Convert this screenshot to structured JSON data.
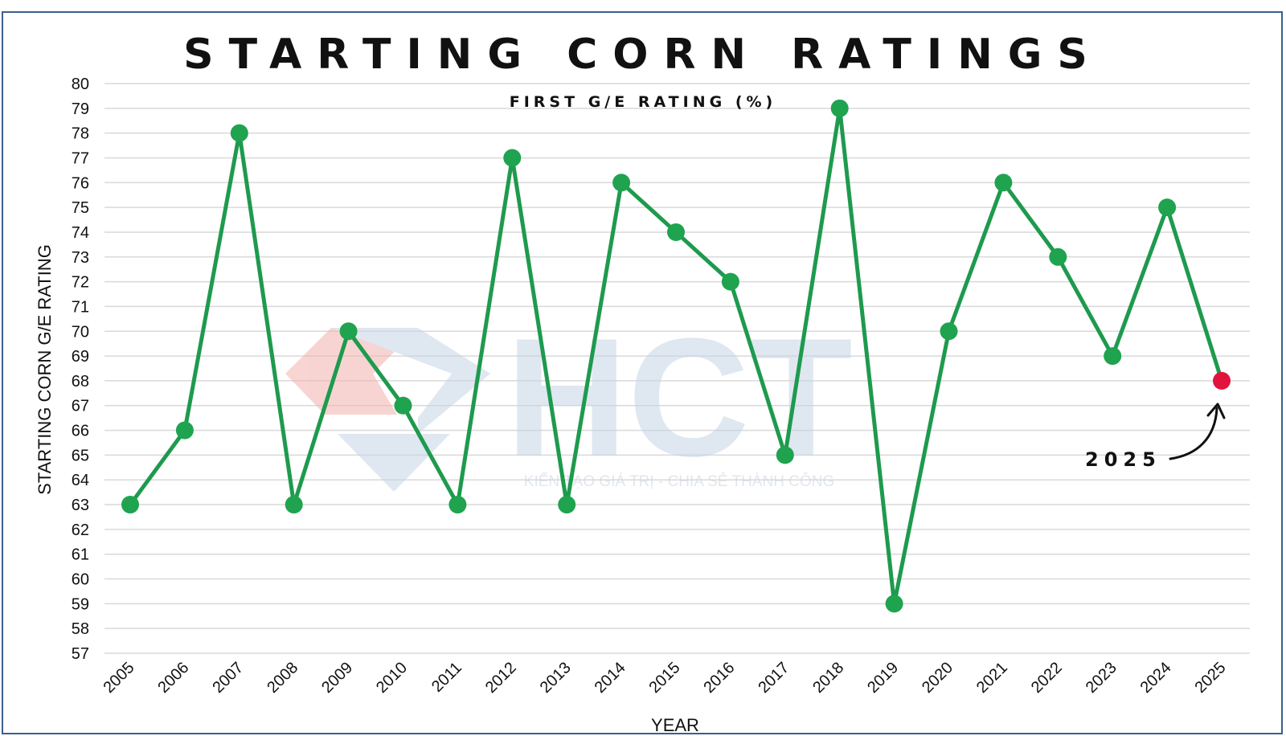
{
  "chart_data": {
    "type": "line",
    "title": "STARTING CORN RATINGS",
    "subtitle": "FIRST G/E RATING (%)",
    "xlabel": "YEAR",
    "ylabel": "STARTING CORN G/E RATING",
    "ylim": [
      57,
      80
    ],
    "ytick_step": 1,
    "grid": true,
    "legend": "none",
    "categories": [
      "2005",
      "2006",
      "2007",
      "2008",
      "2009",
      "2010",
      "2011",
      "2012",
      "2013",
      "2014",
      "2015",
      "2016",
      "2017",
      "2018",
      "2019",
      "2020",
      "2021",
      "2022",
      "2023",
      "2024",
      "2025"
    ],
    "series": [
      {
        "values": [
          63,
          66,
          78,
          63,
          70,
          67,
          63,
          77,
          63,
          76,
          74,
          72,
          65,
          79,
          59,
          70,
          76,
          73,
          69,
          75,
          68
        ],
        "color": "#1e9a4e",
        "marker_color": "#1fa34f",
        "highlight_index": 20,
        "highlight_color": "#e0143c"
      }
    ],
    "annotation": {
      "text": "2025",
      "target": "2025"
    },
    "watermark": {
      "logo_text": "HCT",
      "tagline": "KIẾN TẠO GIÁ TRỊ - CHIA SẺ THÀNH CÔNG"
    }
  }
}
